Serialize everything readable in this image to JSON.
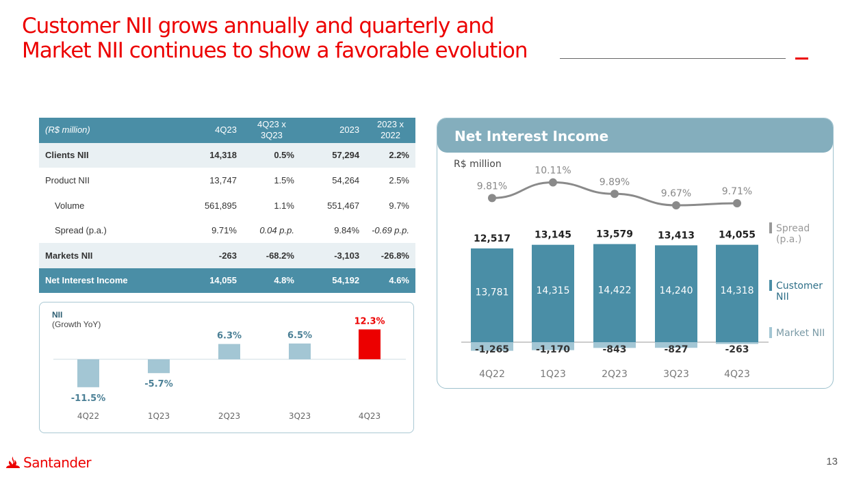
{
  "slide": {
    "title_line1": "Customer NII grows annually and quarterly and",
    "title_line2": "Market NII continues to show a favorable evolution",
    "page_number": "13",
    "brand": "Santander"
  },
  "table": {
    "headers": [
      "(R$ million)",
      "4Q23",
      "4Q23 x 3Q23",
      "2023",
      "2023 x 2022"
    ],
    "rows": [
      {
        "label": "Clients NII",
        "v1": "14,318",
        "v2": "0.5%",
        "v3": "57,294",
        "v4": "2.2%"
      },
      {
        "label": "Product NII",
        "v1": "13,747",
        "v2": "1.5%",
        "v3": "54,264",
        "v4": "2.5%"
      },
      {
        "label": "Volume",
        "v1": "561,895",
        "v2": "1.1%",
        "v3": "551,467",
        "v4": "9.7%"
      },
      {
        "label": "Spread (p.a.)",
        "v1": "9.71%",
        "v2": "0.04 p.p.",
        "v3": "9.84%",
        "v4": "-0.69 p.p."
      },
      {
        "label": "Markets NII",
        "v1": "-263",
        "v2": "-68.2%",
        "v3": "-3,103",
        "v4": "-26.8%"
      },
      {
        "label": "Net Interest Income",
        "v1": "14,055",
        "v2": "4.8%",
        "v3": "54,192",
        "v4": "4.6%"
      }
    ]
  },
  "growth": {
    "title": "NII",
    "subtitle": "(Growth YoY)"
  },
  "nii_panel": {
    "title": "Net Interest Income",
    "unit": "R$ million"
  },
  "colors": {
    "brand_red": "#ec0000",
    "teal": "#4a8ea6",
    "light_blue": "#a3c6d4",
    "grey_line": "#8a8a8a"
  },
  "chart_data": [
    {
      "type": "bar",
      "title": "NII (Growth YoY)",
      "categories": [
        "4Q22",
        "1Q23",
        "2Q23",
        "3Q23",
        "4Q23"
      ],
      "values": [
        -11.5,
        -5.7,
        6.3,
        6.5,
        12.3
      ],
      "labels": [
        "-11.5%",
        "-5.7%",
        "6.3%",
        "6.5%",
        "12.3%"
      ],
      "highlight_index": 4
    },
    {
      "type": "bar",
      "title": "Net Interest Income",
      "ylabel": "R$ million",
      "categories": [
        "4Q22",
        "1Q23",
        "2Q23",
        "3Q23",
        "4Q23"
      ],
      "totals": [
        12517,
        13145,
        13579,
        13413,
        14055
      ],
      "total_labels": [
        "12,517",
        "13,145",
        "13,579",
        "13,413",
        "14,055"
      ],
      "series": [
        {
          "name": "Customer NII",
          "values": [
            13781,
            14315,
            14422,
            14240,
            14318
          ],
          "labels": [
            "13,781",
            "14,315",
            "14,422",
            "14,240",
            "14,318"
          ]
        },
        {
          "name": "Market NII",
          "values": [
            -1265,
            -1170,
            -843,
            -827,
            -263
          ],
          "labels": [
            "-1,265",
            "-1,170",
            "-843",
            "-827",
            "-263"
          ]
        },
        {
          "name": "Spread (p.a.)",
          "type": "line",
          "values": [
            9.81,
            10.11,
            9.89,
            9.67,
            9.71
          ],
          "labels": [
            "9.81%",
            "10.11%",
            "9.89%",
            "9.67%",
            "9.71%"
          ]
        }
      ],
      "legend": [
        "Spread (p.a.)",
        "Customer NII",
        "Market NII"
      ]
    }
  ]
}
